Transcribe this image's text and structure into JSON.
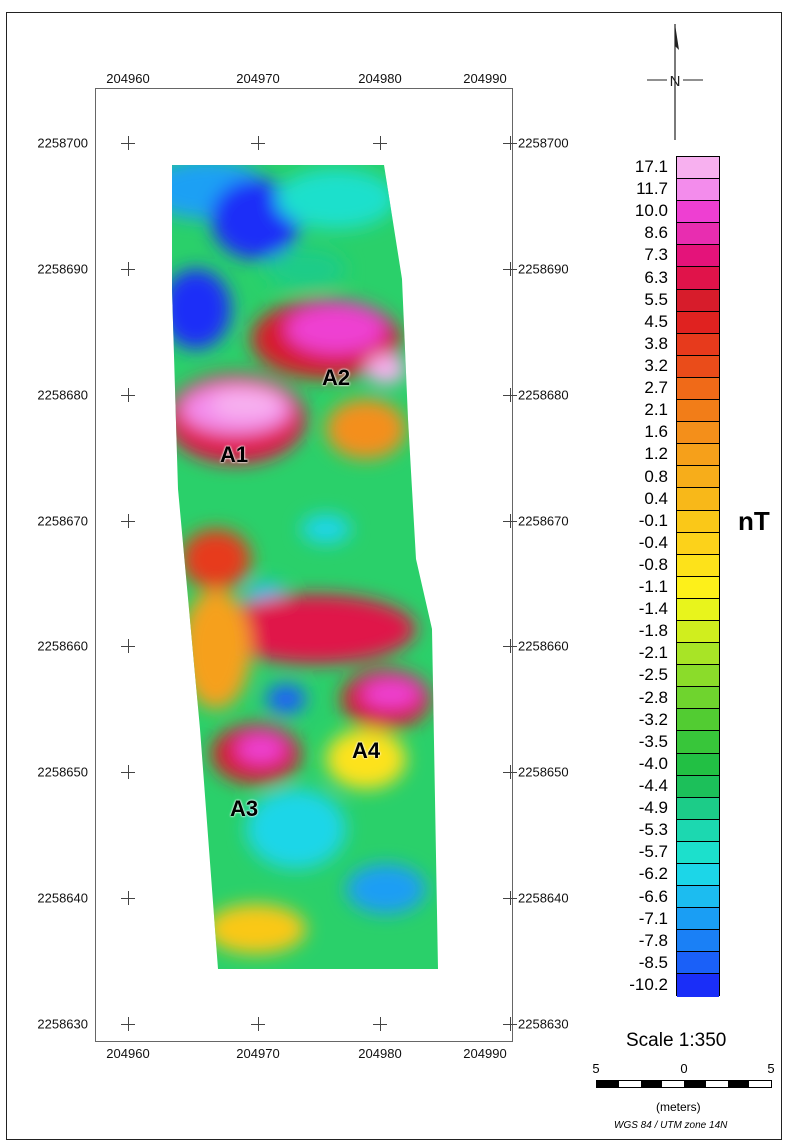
{
  "map": {
    "x_ticks": [
      "204960",
      "204970",
      "204980",
      "204990"
    ],
    "y_ticks": [
      "2258700",
      "2258690",
      "2258680",
      "2258670",
      "2258660",
      "2258650",
      "2258640",
      "2258630"
    ],
    "anomalies": [
      {
        "label": "A1"
      },
      {
        "label": "A2"
      },
      {
        "label": "A3"
      },
      {
        "label": "A4"
      }
    ]
  },
  "legend": {
    "unit": "nT",
    "values": [
      "17.1",
      "11.7",
      "10.0",
      "8.6",
      "7.3",
      "6.3",
      "5.5",
      "4.5",
      "3.8",
      "3.2",
      "2.7",
      "2.1",
      "1.6",
      "1.2",
      "0.8",
      "0.4",
      "-0.1",
      "-0.4",
      "-0.8",
      "-1.1",
      "-1.4",
      "-1.8",
      "-2.1",
      "-2.5",
      "-2.8",
      "-3.2",
      "-3.5",
      "-4.0",
      "-4.4",
      "-4.9",
      "-5.3",
      "-5.7",
      "-6.2",
      "-6.6",
      "-7.1",
      "-7.8",
      "-8.5",
      "-10.2"
    ],
    "colors": [
      "#f7b0ef",
      "#f38cec",
      "#ee3fd2",
      "#e82db0",
      "#e4137a",
      "#e0134a",
      "#d71c2b",
      "#e02220",
      "#e73a1c",
      "#ea4c1a",
      "#f06a18",
      "#f27d18",
      "#f48f1a",
      "#f6a01a",
      "#f7ad1a",
      "#f8b819",
      "#fac818",
      "#fcd21a",
      "#fde21a",
      "#fdf01a",
      "#e8f41c",
      "#d0ee1e",
      "#a8e426",
      "#8bdc2a",
      "#6fd42e",
      "#52cc32",
      "#38c63a",
      "#22c044",
      "#1cc05a",
      "#1ccc88",
      "#1cd8b0",
      "#1ce0cc",
      "#1cd6e8",
      "#1cbcf0",
      "#1a9ef4",
      "#1a80f6",
      "#1a60f8",
      "#1a2ef8"
    ]
  },
  "north_label": "N",
  "scale": {
    "title": "Scale 1:350",
    "left": "5",
    "center": "0",
    "right": "5",
    "unit": "(meters)"
  },
  "projection": "WGS 84 / UTM zone 14N"
}
